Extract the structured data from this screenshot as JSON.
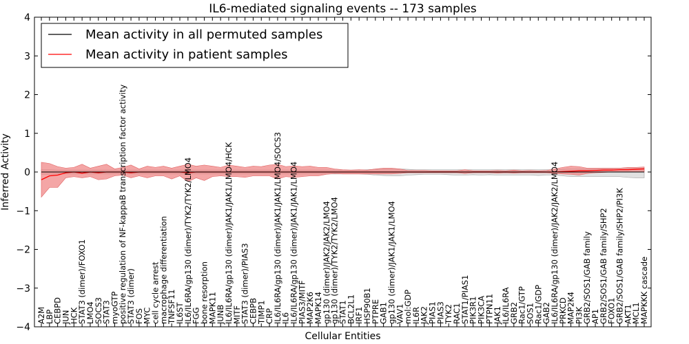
{
  "chart_data": {
    "type": "line",
    "title": "IL6-mediated signaling events -- 173 samples",
    "xlabel": "Cellular Entities",
    "ylabel": "Inferred Activity",
    "ylim": [
      -4,
      4
    ],
    "yticks": [
      -4,
      -3,
      -2,
      -1,
      0,
      1,
      2,
      3,
      4
    ],
    "grid": false,
    "legend": {
      "placement": "top-left",
      "entries": [
        {
          "label": "Mean activity in all permuted samples",
          "color": "#000000"
        },
        {
          "label": "Mean activity in patient samples",
          "color": "#ff0000"
        }
      ]
    },
    "categories": [
      "A2M",
      "LBP",
      "CEBPD",
      "JUN",
      "HCK",
      "STAT3 (dimer)/FOXO1",
      "LMO4",
      "SOCS3",
      "STAT3",
      "myoGTP",
      "positive regulation of NF-kappaB transcription factor activity",
      "STAT3 (dimer)",
      "FOS",
      "MYC",
      "cell cycle arrest",
      "macrophage differentiation",
      "TNFSF11",
      "IL6ST",
      "IL6/IL6RA/gp130 (dimer)/TYK2/TYK2/LMO4",
      "FGG",
      "bone resorption",
      "MAPK11",
      "JUNB",
      "IL6/IL6RA/gp130 (dimer)/JAK1/JAK1/LMO4/HCK",
      "MITF",
      "STAT3 (dimer)/PIAS3",
      "CEBPB",
      "TIMP1",
      "CRP",
      "IL6/IL6RA/gp130 (dimer)/JAK1/JAK1/LMO4/SOCS3",
      "IL6",
      "IL6/IL6RA/gp130 (dimer)/JAK1/JAK1/LMO4",
      "PIAS3/MITF",
      "MAP2K6",
      "MAPK14",
      "gp130 (dimer)/JAK2/JAK2/LMO4",
      "gp130 (dimer)/TYK2/TYK2/LMO4",
      "STAT1",
      "BCL2L1",
      "IRF1",
      "HSP90B1",
      "PTPRE",
      "GAB1",
      "gp130 (dimer)/JAK1/JAK1/LMO4",
      "VAV1",
      "mol:GDP",
      "IL6R",
      "JAK2",
      "PIAS1",
      "PIAS3",
      "TYK2",
      "RAC1",
      "STAT1/PIAS1",
      "PIK3R1",
      "PIK3CA",
      "PTPN11",
      "JAK1",
      "IL6/IL6RA",
      "GRB2",
      "Rac1/GTP",
      "SOS1",
      "Rac1/GDP",
      "GAB2",
      "IL6/IL6RA/gp130 (dimer)/JAK2/JAK2/LMO4",
      "PRKCD",
      "MAP2K4",
      "PI3K",
      "GRB2/SOS1/GAB family",
      "AP1",
      "GRB2/SOS1/GAB family/SHP2",
      "FOXO1",
      "GRB2/SOS1/GAB family/SHP2/PI3K",
      "AKT1",
      "MCL1",
      "MAPKKK cascade"
    ],
    "series": [
      {
        "name": "Mean activity in all permuted samples",
        "color": "#000000",
        "values": [
          0,
          0,
          0,
          0,
          0,
          0,
          0,
          0,
          0,
          0,
          0,
          0,
          0,
          0,
          0,
          0,
          0,
          0,
          0,
          0,
          0,
          0,
          0,
          0,
          0,
          0,
          0,
          0,
          0,
          0,
          0,
          0,
          0,
          0,
          0,
          0,
          0,
          0,
          0,
          0,
          0,
          0,
          0,
          0,
          0,
          0,
          0,
          0,
          0,
          0,
          0,
          0,
          0,
          0,
          0,
          0,
          0,
          0,
          0,
          0,
          0,
          0,
          0,
          0,
          0,
          0,
          0,
          0,
          0,
          0,
          0,
          0,
          0,
          0,
          0
        ],
        "lower": [
          -0.06,
          -0.06,
          -0.05,
          -0.05,
          -0.05,
          -0.05,
          -0.05,
          -0.05,
          -0.05,
          -0.05,
          -0.05,
          -0.05,
          -0.05,
          -0.05,
          -0.05,
          -0.05,
          -0.05,
          -0.05,
          -0.05,
          -0.05,
          -0.05,
          -0.05,
          -0.05,
          -0.05,
          -0.05,
          -0.05,
          -0.05,
          -0.05,
          -0.05,
          -0.05,
          -0.05,
          -0.05,
          -0.05,
          -0.05,
          -0.05,
          -0.05,
          -0.05,
          -0.05,
          -0.05,
          -0.05,
          -0.06,
          -0.08,
          -0.09,
          -0.1,
          -0.1,
          -0.08,
          -0.07,
          -0.06,
          -0.06,
          -0.06,
          -0.07,
          -0.08,
          -0.08,
          -0.07,
          -0.08,
          -0.07,
          -0.08,
          -0.08,
          -0.08,
          -0.08,
          -0.08,
          -0.09,
          -0.08,
          -0.08,
          -0.1,
          -0.12,
          -0.12,
          -0.12,
          -0.12,
          -0.12,
          -0.12,
          -0.12,
          -0.14,
          -0.15,
          -0.15
        ],
        "upper": [
          0.06,
          0.06,
          0.05,
          0.05,
          0.05,
          0.05,
          0.05,
          0.05,
          0.05,
          0.05,
          0.05,
          0.05,
          0.05,
          0.05,
          0.05,
          0.05,
          0.05,
          0.05,
          0.05,
          0.05,
          0.05,
          0.05,
          0.05,
          0.05,
          0.05,
          0.05,
          0.05,
          0.05,
          0.05,
          0.05,
          0.05,
          0.05,
          0.05,
          0.05,
          0.05,
          0.05,
          0.05,
          0.05,
          0.05,
          0.05,
          0.06,
          0.07,
          0.08,
          0.08,
          0.08,
          0.07,
          0.06,
          0.06,
          0.06,
          0.06,
          0.06,
          0.06,
          0.06,
          0.06,
          0.06,
          0.06,
          0.06,
          0.06,
          0.06,
          0.06,
          0.06,
          0.06,
          0.06,
          0.06,
          0.07,
          0.08,
          0.08,
          0.08,
          0.08,
          0.09,
          0.09,
          0.1,
          0.1,
          0.1,
          0.1
        ]
      },
      {
        "name": "Mean activity in patient samples",
        "color": "#ff0000",
        "band_color": "#f08080",
        "values": [
          -0.2,
          -0.1,
          -0.08,
          -0.02,
          0,
          -0.03,
          0,
          -0.02,
          0,
          0,
          0,
          -0.02,
          0,
          0,
          0,
          0,
          0,
          0,
          -0.02,
          0,
          0,
          0,
          0,
          0,
          0,
          0,
          0,
          0,
          0,
          0,
          0,
          0,
          0,
          0,
          0,
          0,
          0,
          0,
          0,
          0,
          0,
          0,
          0,
          0,
          0,
          0,
          0,
          0,
          0,
          0,
          0,
          0,
          0,
          0,
          0,
          0,
          0,
          0,
          0,
          0,
          0,
          0,
          0,
          0,
          0.01,
          0.02,
          0.03,
          0.03,
          0.04,
          0.05,
          0.05,
          0.06,
          0.06,
          0.07,
          0.08
        ],
        "lower": [
          -0.65,
          -0.4,
          -0.4,
          -0.15,
          -0.12,
          -0.15,
          -0.12,
          -0.2,
          -0.18,
          -0.1,
          -0.08,
          -0.15,
          -0.1,
          -0.15,
          -0.1,
          -0.1,
          -0.18,
          -0.1,
          -0.25,
          -0.15,
          -0.22,
          -0.12,
          -0.1,
          -0.12,
          -0.12,
          -0.14,
          -0.1,
          -0.1,
          -0.1,
          -0.18,
          -0.12,
          -0.14,
          -0.12,
          -0.1,
          -0.1,
          -0.06,
          -0.04,
          -0.05,
          -0.05,
          -0.05,
          -0.05,
          -0.05,
          -0.05,
          -0.05,
          -0.04,
          -0.02,
          -0.02,
          -0.02,
          -0.02,
          -0.02,
          -0.02,
          -0.02,
          -0.04,
          -0.02,
          -0.02,
          -0.02,
          -0.03,
          -0.02,
          -0.03,
          -0.02,
          -0.02,
          -0.02,
          -0.02,
          -0.04,
          -0.05,
          -0.06,
          -0.08,
          -0.04,
          -0.02,
          -0.01,
          0,
          0,
          0,
          0,
          0
        ],
        "upper": [
          0.25,
          0.22,
          0.14,
          0.1,
          0.12,
          0.2,
          0.1,
          0.15,
          0.2,
          0.08,
          0.12,
          0.18,
          0.08,
          0.15,
          0.12,
          0.15,
          0.1,
          0.15,
          0.2,
          0.15,
          0.18,
          0.15,
          0.12,
          0.18,
          0.15,
          0.12,
          0.15,
          0.14,
          0.18,
          0.2,
          0.14,
          0.16,
          0.14,
          0.15,
          0.12,
          0.12,
          0.08,
          0.06,
          0.05,
          0.06,
          0.05,
          0.08,
          0.1,
          0.1,
          0.08,
          0.04,
          0.04,
          0.04,
          0.03,
          0.03,
          0.03,
          0.03,
          0.06,
          0.03,
          0.03,
          0.03,
          0.04,
          0.03,
          0.05,
          0.03,
          0.04,
          0.03,
          0.04,
          0.08,
          0.12,
          0.15,
          0.14,
          0.1,
          0.1,
          0.1,
          0.1,
          0.1,
          0.12,
          0.12,
          0.13
        ]
      }
    ]
  }
}
